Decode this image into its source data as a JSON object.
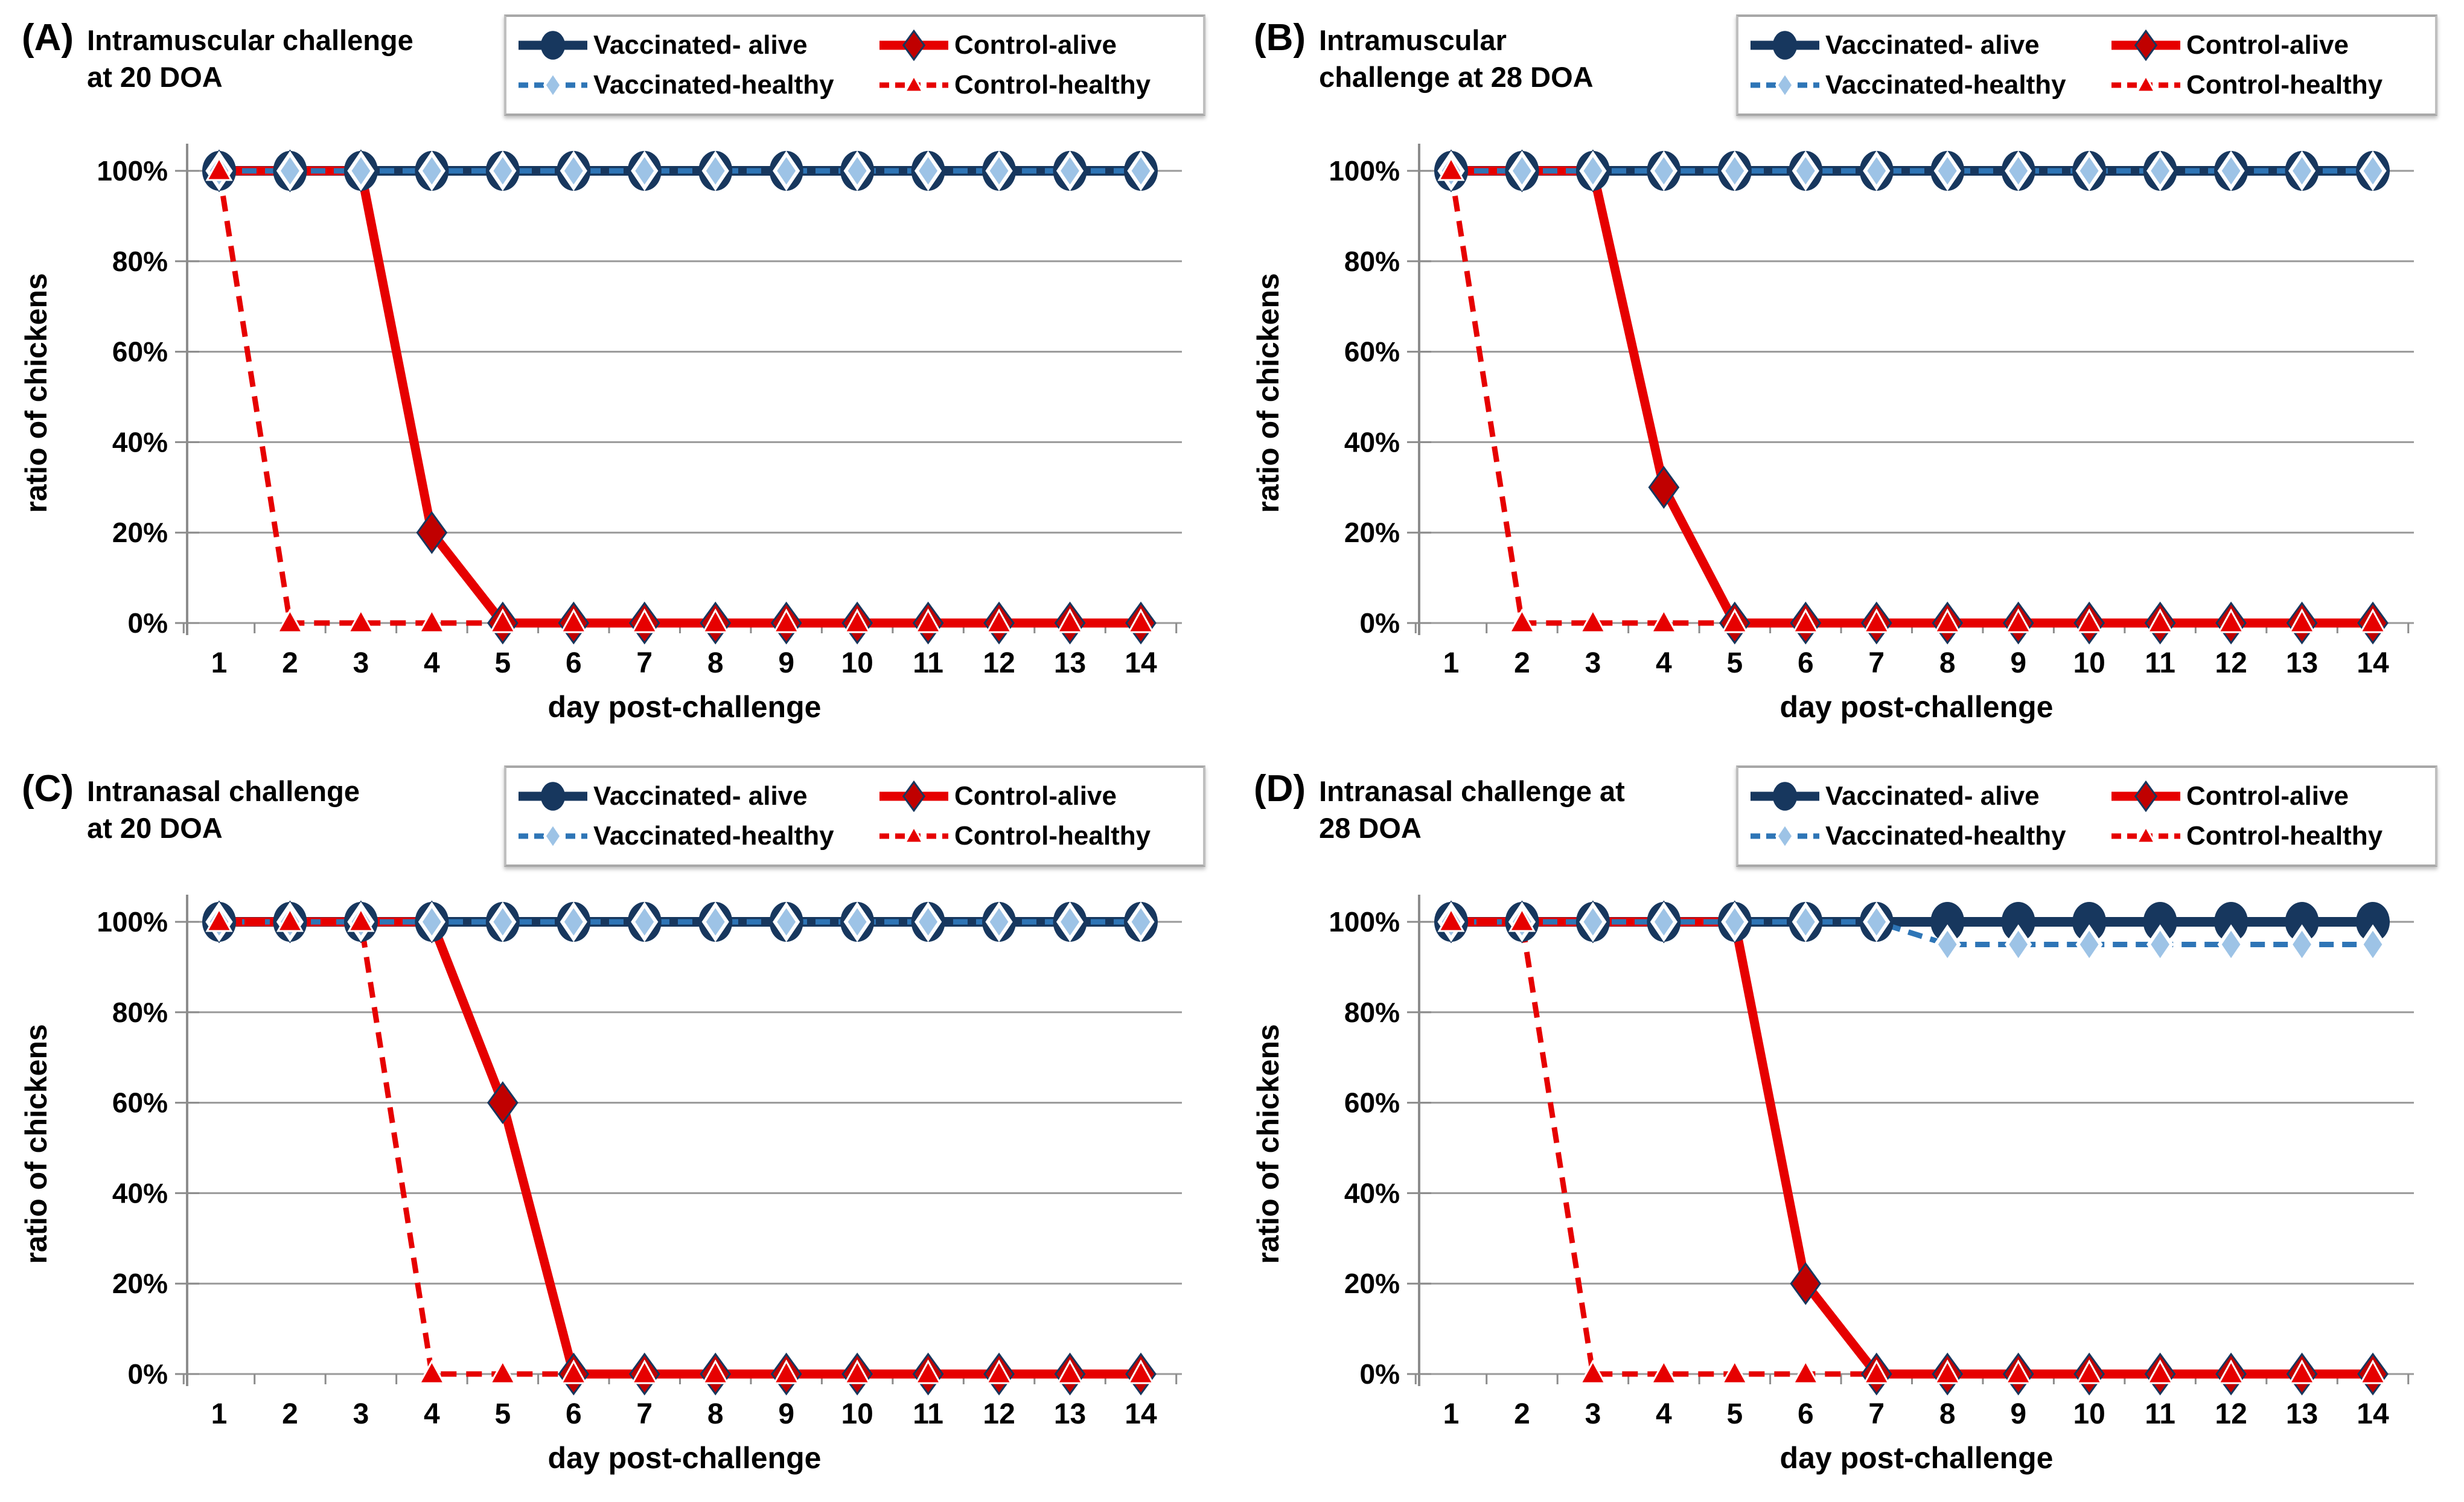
{
  "colors": {
    "navy": "#17375E",
    "medium_blue": "#2E75B6",
    "light_blue": "#9DC3E6",
    "red": "#E60000",
    "dark_red": "#C00000",
    "grid_gray": "#9A9A9A",
    "axis_gray": "#8C8C8C",
    "legend_border": "#BFBFBF",
    "white": "#FFFFFF"
  },
  "legend": {
    "position": "top-right",
    "entries": [
      {
        "key": "vaccinated_alive",
        "label": "Vaccinated- alive",
        "marker": "circle",
        "line": "solid"
      },
      {
        "key": "control_alive",
        "label": "Control-alive",
        "marker": "diamond",
        "line": "solid"
      },
      {
        "key": "vaccinated_healthy",
        "label": "Vaccinated-healthy",
        "marker": "small-diamond",
        "line": "dashed"
      },
      {
        "key": "control_healthy",
        "label": "Control-healthy",
        "marker": "triangle",
        "line": "dashed"
      }
    ]
  },
  "chart_data": [
    {
      "id": "A",
      "panel_label": "(A)",
      "title": "Intramuscular challenge at 20 DOA",
      "title_lines": [
        "Intramuscular challenge",
        "at 20 DOA"
      ],
      "type": "line",
      "x": [
        1,
        2,
        3,
        4,
        5,
        6,
        7,
        8,
        9,
        10,
        11,
        12,
        13,
        14
      ],
      "xlabel": "day post-challenge",
      "ylabel": "ratio of chickens",
      "ylim": [
        0,
        100
      ],
      "ytick_step": 20,
      "yticks": [
        "0%",
        "20%",
        "40%",
        "60%",
        "80%",
        "100%"
      ],
      "grid": true,
      "series": [
        {
          "key": "vaccinated_alive",
          "name": "Vaccinated- alive",
          "values": [
            100,
            100,
            100,
            100,
            100,
            100,
            100,
            100,
            100,
            100,
            100,
            100,
            100,
            100
          ]
        },
        {
          "key": "control_alive",
          "name": "Control-alive",
          "values": [
            100,
            100,
            100,
            20,
            0,
            0,
            0,
            0,
            0,
            0,
            0,
            0,
            0,
            0
          ]
        },
        {
          "key": "vaccinated_healthy",
          "name": "Vaccinated-healthy",
          "values": [
            100,
            100,
            100,
            100,
            100,
            100,
            100,
            100,
            100,
            100,
            100,
            100,
            100,
            100
          ]
        },
        {
          "key": "control_healthy",
          "name": "Control-healthy",
          "values": [
            100,
            0,
            0,
            0,
            0,
            0,
            0,
            0,
            0,
            0,
            0,
            0,
            0,
            0
          ]
        }
      ]
    },
    {
      "id": "B",
      "panel_label": "(B)",
      "title": "Intramuscular challenge at 28 DOA",
      "title_lines": [
        "Intramuscular",
        "challenge at 28 DOA"
      ],
      "type": "line",
      "x": [
        1,
        2,
        3,
        4,
        5,
        6,
        7,
        8,
        9,
        10,
        11,
        12,
        13,
        14
      ],
      "xlabel": "day post-challenge",
      "ylabel": "ratio of chickens",
      "ylim": [
        0,
        100
      ],
      "ytick_step": 20,
      "yticks": [
        "0%",
        "20%",
        "40%",
        "60%",
        "80%",
        "100%"
      ],
      "grid": true,
      "series": [
        {
          "key": "vaccinated_alive",
          "name": "Vaccinated- alive",
          "values": [
            100,
            100,
            100,
            100,
            100,
            100,
            100,
            100,
            100,
            100,
            100,
            100,
            100,
            100
          ]
        },
        {
          "key": "control_alive",
          "name": "Control-alive",
          "values": [
            100,
            100,
            100,
            30,
            0,
            0,
            0,
            0,
            0,
            0,
            0,
            0,
            0,
            0
          ]
        },
        {
          "key": "vaccinated_healthy",
          "name": "Vaccinated-healthy",
          "values": [
            100,
            100,
            100,
            100,
            100,
            100,
            100,
            100,
            100,
            100,
            100,
            100,
            100,
            100
          ]
        },
        {
          "key": "control_healthy",
          "name": "Control-healthy",
          "values": [
            100,
            0,
            0,
            0,
            0,
            0,
            0,
            0,
            0,
            0,
            0,
            0,
            0,
            0
          ]
        }
      ]
    },
    {
      "id": "C",
      "panel_label": "(C)",
      "title": "Intranasal challenge at 20 DOA",
      "title_lines": [
        "Intranasal challenge",
        "at 20 DOA"
      ],
      "type": "line",
      "x": [
        1,
        2,
        3,
        4,
        5,
        6,
        7,
        8,
        9,
        10,
        11,
        12,
        13,
        14
      ],
      "xlabel": "day post-challenge",
      "ylabel": "ratio of chickens",
      "ylim": [
        0,
        100
      ],
      "ytick_step": 20,
      "yticks": [
        "0%",
        "20%",
        "40%",
        "60%",
        "80%",
        "100%"
      ],
      "grid": true,
      "series": [
        {
          "key": "vaccinated_alive",
          "name": "Vaccinated- alive",
          "values": [
            100,
            100,
            100,
            100,
            100,
            100,
            100,
            100,
            100,
            100,
            100,
            100,
            100,
            100
          ]
        },
        {
          "key": "control_alive",
          "name": "Control-alive",
          "values": [
            100,
            100,
            100,
            100,
            60,
            0,
            0,
            0,
            0,
            0,
            0,
            0,
            0,
            0
          ]
        },
        {
          "key": "vaccinated_healthy",
          "name": "Vaccinated-healthy",
          "values": [
            100,
            100,
            100,
            100,
            100,
            100,
            100,
            100,
            100,
            100,
            100,
            100,
            100,
            100
          ]
        },
        {
          "key": "control_healthy",
          "name": "Control-healthy",
          "values": [
            100,
            100,
            100,
            0,
            0,
            0,
            0,
            0,
            0,
            0,
            0,
            0,
            0,
            0
          ]
        }
      ]
    },
    {
      "id": "D",
      "panel_label": "(D)",
      "title": "Intranasal challenge at 28 DOA",
      "title_lines": [
        "Intranasal challenge at",
        "28 DOA"
      ],
      "type": "line",
      "x": [
        1,
        2,
        3,
        4,
        5,
        6,
        7,
        8,
        9,
        10,
        11,
        12,
        13,
        14
      ],
      "xlabel": "day post-challenge",
      "ylabel": "ratio of chickens",
      "ylim": [
        0,
        100
      ],
      "ytick_step": 20,
      "yticks": [
        "0%",
        "20%",
        "40%",
        "60%",
        "80%",
        "100%"
      ],
      "grid": true,
      "series": [
        {
          "key": "vaccinated_alive",
          "name": "Vaccinated- alive",
          "values": [
            100,
            100,
            100,
            100,
            100,
            100,
            100,
            100,
            100,
            100,
            100,
            100,
            100,
            100
          ]
        },
        {
          "key": "control_alive",
          "name": "Control-alive",
          "values": [
            100,
            100,
            100,
            100,
            100,
            20,
            0,
            0,
            0,
            0,
            0,
            0,
            0,
            0
          ]
        },
        {
          "key": "vaccinated_healthy",
          "name": "Vaccinated-healthy",
          "values": [
            100,
            100,
            100,
            100,
            100,
            100,
            100,
            95,
            95,
            95,
            95,
            95,
            95,
            95
          ]
        },
        {
          "key": "control_healthy",
          "name": "Control-healthy",
          "values": [
            100,
            100,
            0,
            0,
            0,
            0,
            0,
            0,
            0,
            0,
            0,
            0,
            0,
            0
          ]
        }
      ]
    }
  ]
}
